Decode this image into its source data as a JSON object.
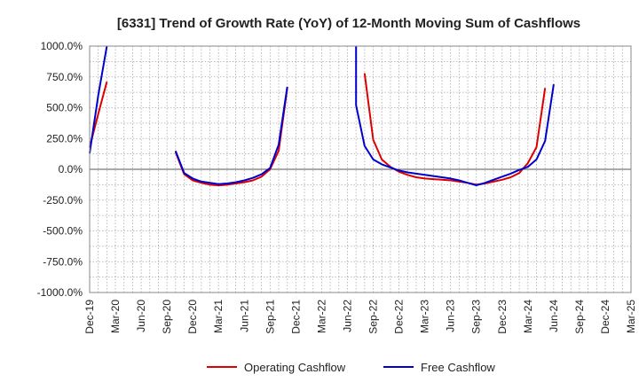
{
  "chart_data": {
    "type": "line",
    "title": "[6331]  Trend of Growth Rate (YoY) of 12-Month Moving Sum of Cashflows",
    "xlabel": "",
    "ylabel": "",
    "ylim": [
      -1000,
      1000
    ],
    "yticks": [
      -1000,
      -750,
      -500,
      -250,
      0,
      250,
      500,
      750,
      1000
    ],
    "ytick_labels": [
      "-1000.0%",
      "-750.0%",
      "-500.0%",
      "-250.0%",
      "0.0%",
      "250.0%",
      "500.0%",
      "750.0%",
      "1000.0%"
    ],
    "x_start": "Dec-19",
    "x_end": "Mar-25",
    "xtick_labels": [
      "Dec-19",
      "Mar-20",
      "Jun-20",
      "Sep-20",
      "Dec-20",
      "Mar-21",
      "Jun-21",
      "Sep-21",
      "Dec-21",
      "Mar-22",
      "Jun-22",
      "Sep-22",
      "Dec-22",
      "Mar-23",
      "Jun-23",
      "Sep-23",
      "Dec-23",
      "Mar-24",
      "Jun-24",
      "Sep-24",
      "Dec-24",
      "Mar-25"
    ],
    "grid": true,
    "legend_position": "bottom",
    "series": [
      {
        "name": "Operating Cashflow",
        "color": "#dd0000",
        "points": [
          [
            "Dec-19",
            180
          ],
          [
            "Jan-20",
            450
          ],
          [
            "Feb-20",
            710
          ],
          [
            "Oct-20",
            140
          ],
          [
            "Nov-20",
            -40
          ],
          [
            "Dec-20",
            -90
          ],
          [
            "Jan-21",
            -110
          ],
          [
            "Feb-21",
            -125
          ],
          [
            "Mar-21",
            -130
          ],
          [
            "Apr-21",
            -125
          ],
          [
            "May-21",
            -115
          ],
          [
            "Jun-21",
            -105
          ],
          [
            "Jul-21",
            -90
          ],
          [
            "Aug-21",
            -60
          ],
          [
            "Sep-21",
            0
          ],
          [
            "Oct-21",
            150
          ],
          [
            "Nov-21",
            660
          ],
          [
            "Aug-22",
            780
          ],
          [
            "Sep-22",
            240
          ],
          [
            "Oct-22",
            80
          ],
          [
            "Nov-22",
            20
          ],
          [
            "Dec-22",
            -20
          ],
          [
            "Jan-23",
            -45
          ],
          [
            "Feb-23",
            -65
          ],
          [
            "Mar-23",
            -75
          ],
          [
            "Apr-23",
            -80
          ],
          [
            "May-23",
            -85
          ],
          [
            "Jun-23",
            -90
          ],
          [
            "Jul-23",
            -100
          ],
          [
            "Aug-23",
            -110
          ],
          [
            "Sep-23",
            -125
          ],
          [
            "Oct-23",
            -115
          ],
          [
            "Nov-23",
            -100
          ],
          [
            "Dec-23",
            -85
          ],
          [
            "Jan-24",
            -65
          ],
          [
            "Feb-24",
            -30
          ],
          [
            "Mar-24",
            50
          ],
          [
            "Apr-24",
            180
          ],
          [
            "May-24",
            660
          ]
        ]
      },
      {
        "name": "Free Cashflow",
        "color": "#0000cc",
        "points": [
          [
            "Dec-19",
            130
          ],
          [
            "Jan-20",
            600
          ],
          [
            "Feb-20",
            1000
          ],
          [
            "Oct-20",
            150
          ],
          [
            "Nov-20",
            -30
          ],
          [
            "Dec-20",
            -75
          ],
          [
            "Jan-21",
            -100
          ],
          [
            "Feb-21",
            -110
          ],
          [
            "Mar-21",
            -120
          ],
          [
            "Apr-21",
            -115
          ],
          [
            "May-21",
            -105
          ],
          [
            "Jun-21",
            -90
          ],
          [
            "Jul-21",
            -70
          ],
          [
            "Aug-21",
            -40
          ],
          [
            "Sep-21",
            10
          ],
          [
            "Oct-21",
            200
          ],
          [
            "Nov-21",
            670
          ],
          [
            "Jul-22",
            1000
          ],
          [
            "Jul-22",
            520
          ],
          [
            "Aug-22",
            190
          ],
          [
            "Sep-22",
            80
          ],
          [
            "Oct-22",
            40
          ],
          [
            "Nov-22",
            15
          ],
          [
            "Dec-22",
            -10
          ],
          [
            "Jan-23",
            -25
          ],
          [
            "Feb-23",
            -35
          ],
          [
            "Mar-23",
            -45
          ],
          [
            "Apr-23",
            -55
          ],
          [
            "May-23",
            -65
          ],
          [
            "Jun-23",
            -75
          ],
          [
            "Jul-23",
            -90
          ],
          [
            "Aug-23",
            -110
          ],
          [
            "Sep-23",
            -130
          ],
          [
            "Oct-23",
            -110
          ],
          [
            "Nov-23",
            -85
          ],
          [
            "Dec-23",
            -60
          ],
          [
            "Jan-24",
            -35
          ],
          [
            "Feb-24",
            -5
          ],
          [
            "Mar-24",
            20
          ],
          [
            "Apr-24",
            80
          ],
          [
            "May-24",
            230
          ],
          [
            "Jun-24",
            690
          ]
        ]
      }
    ]
  }
}
